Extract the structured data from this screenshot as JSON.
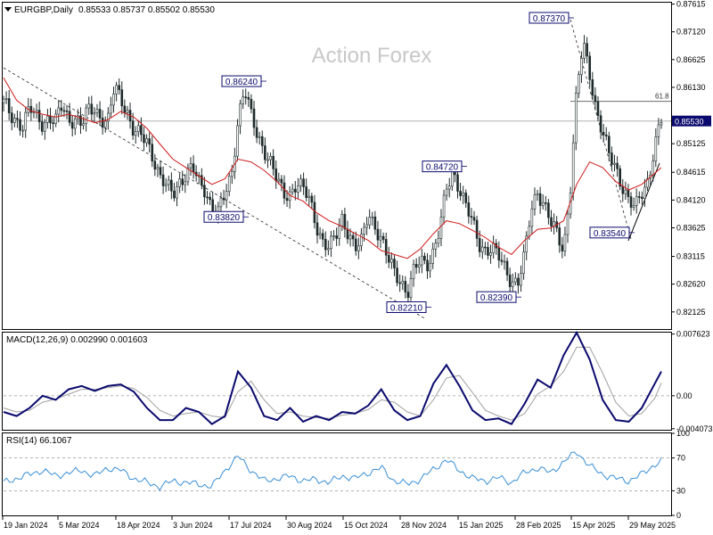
{
  "header": {
    "symbol": "EURGBP,Daily",
    "ohlc": "0.85533 0.85737 0.85502 0.85530",
    "watermark": "Action Forex"
  },
  "colors": {
    "candles": "#1f2a2a",
    "ma": "#d11a1a",
    "macd": "#0a0a6e",
    "macd_signal": "#a0a0a0",
    "rsi": "#3a8fd6",
    "grid_dash": "#888888",
    "price_box": "#0a0a6e"
  },
  "chart_data": [
    {
      "type": "line",
      "pane": "price",
      "title": "EURGBP,Daily",
      "ylim": [
        0.8182,
        0.8764
      ],
      "y_ticks": [
        "0.87615",
        "0.87120",
        "0.86625",
        "0.86130",
        "0.85530",
        "0.85125",
        "0.84615",
        "0.84120",
        "0.83625",
        "0.83115",
        "0.82620",
        "0.82125"
      ],
      "x_ticks": [
        "19 Jan 2024",
        "5 Mar 2024",
        "18 Apr 2024",
        "3 Jun 2024",
        "17 Jul 2024",
        "30 Aug 2024",
        "15 Oct 2024",
        "28 Nov 2024",
        "15 Jan 2025",
        "28 Feb 2025",
        "15 Apr 2025",
        "29 May 2025"
      ],
      "current_price": "0.85530",
      "fib_label": "61.8",
      "fib_level": 0.8588,
      "series": [
        {
          "role": "close",
          "x": [
            0,
            5,
            10,
            15,
            20,
            25,
            30,
            35,
            40,
            45,
            50,
            55,
            60,
            65,
            70,
            75,
            80,
            85,
            90,
            95,
            100,
            105,
            110,
            115,
            120,
            125,
            130,
            135,
            140,
            145,
            150,
            155,
            160,
            165,
            170,
            175,
            180,
            185,
            190,
            195,
            200,
            205,
            210,
            215,
            220,
            225,
            230,
            235,
            240,
            245,
            250,
            255,
            260,
            265,
            270,
            275,
            280,
            285,
            290,
            295,
            300,
            305,
            310,
            315,
            320,
            325,
            330,
            335,
            340,
            345,
            350,
            355,
            360,
            365,
            370,
            375,
            380,
            385,
            390,
            395,
            400,
            405,
            410,
            415,
            420,
            425,
            430,
            435,
            440,
            445,
            450,
            455,
            460,
            465,
            470,
            475,
            480,
            485,
            490,
            495,
            500,
            505
          ],
          "values": [
            0.8585,
            0.8565,
            0.8555,
            0.8545,
            0.8575,
            0.856,
            0.855,
            0.856,
            0.855,
            0.858,
            0.8555,
            0.856,
            0.8545,
            0.857,
            0.8575,
            0.856,
            0.855,
            0.861,
            0.8595,
            0.857,
            0.8535,
            0.8525,
            0.8515,
            0.849,
            0.8455,
            0.8435,
            0.842,
            0.8445,
            0.846,
            0.847,
            0.844,
            0.843,
            0.84,
            0.839,
            0.842,
            0.8455,
            0.856,
            0.8612,
            0.856,
            0.8525,
            0.8505,
            0.848,
            0.8445,
            0.842,
            0.8425,
            0.8445,
            0.843,
            0.841,
            0.837,
            0.834,
            0.8325,
            0.8345,
            0.838,
            0.8355,
            0.8325,
            0.8335,
            0.839,
            0.837,
            0.834,
            0.8305,
            0.8285,
            0.827,
            0.8245,
            0.8282,
            0.8305,
            0.83,
            0.832,
            0.836,
            0.843,
            0.8465,
            0.8435,
            0.84,
            0.837,
            0.8335,
            0.8325,
            0.8325,
            0.831,
            0.829,
            0.827,
            0.8265,
            0.831,
            0.8395,
            0.843,
            0.8405,
            0.837,
            0.835,
            0.8325,
            0.843,
            0.8605,
            0.869,
            0.864,
            0.8575,
            0.853,
            0.849,
            0.847,
            0.844,
            0.841,
            0.8395,
            0.8425,
            0.845,
            0.851,
            0.8553
          ]
        },
        {
          "role": "ma",
          "x": [
            0,
            10,
            20,
            30,
            40,
            50,
            60,
            70,
            80,
            90,
            100,
            110,
            120,
            130,
            140,
            150,
            160,
            170,
            180,
            190,
            200,
            210,
            220,
            230,
            240,
            250,
            260,
            270,
            280,
            290,
            300,
            310,
            320,
            330,
            340,
            350,
            360,
            370,
            380,
            390,
            400,
            410,
            420,
            430,
            440,
            450,
            460,
            470,
            480,
            490,
            500,
            505
          ],
          "values": [
            0.863,
            0.859,
            0.8572,
            0.8565,
            0.856,
            0.8565,
            0.8558,
            0.855,
            0.8555,
            0.857,
            0.856,
            0.854,
            0.8512,
            0.8485,
            0.847,
            0.8455,
            0.844,
            0.845,
            0.8485,
            0.848,
            0.8465,
            0.8445,
            0.842,
            0.841,
            0.839,
            0.8375,
            0.8365,
            0.8352,
            0.834,
            0.8322,
            0.8315,
            0.8308,
            0.8325,
            0.8352,
            0.8375,
            0.837,
            0.8358,
            0.8345,
            0.8328,
            0.8315,
            0.834,
            0.836,
            0.8362,
            0.8375,
            0.844,
            0.848,
            0.847,
            0.8445,
            0.843,
            0.844,
            0.846,
            0.847
          ]
        }
      ],
      "annotations": [
        "0.86240",
        "0.83820",
        "0.84720",
        "0.82210",
        "0.82390",
        "0.87370",
        "0.83540"
      ]
    },
    {
      "type": "line",
      "pane": "macd",
      "title": "MACD(12,26,9) 0.002990 0.001603",
      "ylim": [
        -0.0042,
        0.0078
      ],
      "y_ticks": [
        "0.007623",
        "0.00",
        "-0.004073"
      ],
      "series": [
        {
          "role": "macd",
          "x": [
            0,
            10,
            20,
            30,
            40,
            50,
            60,
            70,
            80,
            90,
            100,
            110,
            120,
            130,
            140,
            150,
            160,
            170,
            180,
            190,
            200,
            210,
            220,
            230,
            240,
            250,
            260,
            270,
            280,
            290,
            300,
            310,
            320,
            330,
            340,
            350,
            360,
            370,
            380,
            390,
            400,
            410,
            420,
            430,
            440,
            450,
            460,
            470,
            480,
            490,
            500,
            505
          ],
          "values": [
            -0.002,
            -0.0025,
            -0.0015,
            0.0,
            -0.0005,
            0.0008,
            0.0012,
            0.0006,
            0.0012,
            0.0014,
            0.0005,
            -0.0015,
            -0.003,
            -0.003,
            -0.0015,
            -0.002,
            -0.0035,
            -0.0025,
            0.003,
            0.001,
            -0.0025,
            -0.003,
            -0.0015,
            -0.0032,
            -0.0025,
            -0.003,
            -0.002,
            -0.0022,
            -0.0012,
            0.0008,
            -0.0018,
            -0.003,
            -0.0025,
            0.0015,
            0.0038,
            0.0012,
            -0.0018,
            -0.003,
            -0.0028,
            -0.0035,
            -0.001,
            0.002,
            0.001,
            0.005,
            0.0078,
            0.0045,
            -0.0005,
            -0.003,
            -0.0032,
            -0.0015,
            0.0015,
            0.003
          ]
        },
        {
          "role": "signal",
          "x": [
            0,
            10,
            20,
            30,
            40,
            50,
            60,
            70,
            80,
            90,
            100,
            110,
            120,
            130,
            140,
            150,
            160,
            170,
            180,
            190,
            200,
            210,
            220,
            230,
            240,
            250,
            260,
            270,
            280,
            290,
            300,
            310,
            320,
            330,
            340,
            350,
            360,
            370,
            380,
            390,
            400,
            410,
            420,
            430,
            440,
            450,
            460,
            470,
            480,
            490,
            500,
            505
          ],
          "values": [
            -0.0015,
            -0.002,
            -0.0018,
            -0.0008,
            -0.0004,
            0.0002,
            0.0008,
            0.0008,
            0.001,
            0.0012,
            0.0009,
            -0.0002,
            -0.0018,
            -0.0025,
            -0.0022,
            -0.002,
            -0.0025,
            -0.0027,
            0.0005,
            0.0018,
            -0.0005,
            -0.0022,
            -0.002,
            -0.0025,
            -0.0027,
            -0.0028,
            -0.0024,
            -0.0022,
            -0.0017,
            -0.0005,
            -0.0008,
            -0.002,
            -0.0025,
            -0.0005,
            0.0022,
            0.0025,
            0.0004,
            -0.0018,
            -0.0025,
            -0.003,
            -0.0022,
            0.0002,
            0.0012,
            0.003,
            0.006,
            0.006,
            0.0028,
            -0.0008,
            -0.0025,
            -0.0022,
            -0.0003,
            0.0016
          ]
        }
      ]
    },
    {
      "type": "line",
      "pane": "rsi",
      "title": "RSI(14) 66.1067",
      "ylim": [
        0,
        100
      ],
      "y_ticks": [
        "100",
        "70",
        "30",
        "0"
      ],
      "series": [
        {
          "role": "rsi",
          "x": [
            0,
            10,
            20,
            30,
            40,
            50,
            60,
            70,
            80,
            90,
            100,
            110,
            120,
            130,
            140,
            150,
            160,
            170,
            180,
            190,
            200,
            210,
            220,
            230,
            240,
            250,
            260,
            270,
            280,
            290,
            300,
            310,
            320,
            330,
            340,
            350,
            360,
            370,
            380,
            390,
            400,
            410,
            420,
            430,
            440,
            450,
            460,
            470,
            480,
            490,
            500,
            505
          ],
          "values": [
            40,
            45,
            50,
            55,
            48,
            52,
            55,
            48,
            58,
            55,
            45,
            40,
            35,
            42,
            40,
            38,
            35,
            55,
            72,
            55,
            42,
            45,
            48,
            42,
            44,
            40,
            48,
            45,
            52,
            58,
            42,
            38,
            44,
            56,
            68,
            55,
            45,
            42,
            46,
            40,
            52,
            58,
            52,
            65,
            78,
            60,
            50,
            45,
            42,
            50,
            62,
            66
          ]
        }
      ]
    }
  ],
  "labels_raw": {
    "macd_title": "MACD(12,26,9) 0.002990 0.001603",
    "rsi_title": "RSI(14) 66.1067"
  }
}
